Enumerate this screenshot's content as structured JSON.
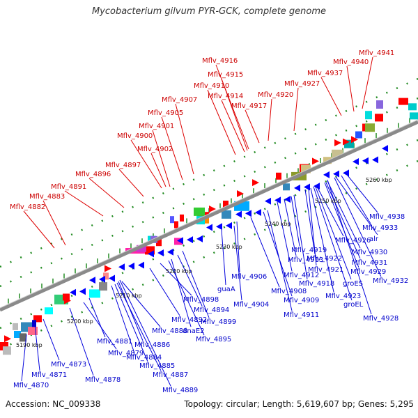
{
  "title": "Mycobacterium gilvum PYR-GCK, complete genome",
  "footer": {
    "accession": "Accession: NC_009338",
    "topology": "Topology: circular; Length: 5,619,607 bp; Genes: 5,295"
  },
  "colors": {
    "top_labels": "#cc0000",
    "bottom_labels": "#0000cc",
    "forward_genes": "#ff0000",
    "reverse_genes": "#0000ff",
    "backbone": "#888888",
    "ticks": "#228B22"
  },
  "kbp_ticks": [
    "5190 kbp",
    "5200 kbp",
    "5210 kbp",
    "5220 kbp",
    "5230 kbp",
    "5240 kbp",
    "5250 kbp",
    "5260 kbp"
  ],
  "top_labels": [
    "Mflv_4941",
    "Mflv_4940",
    "Mflv_4937",
    "Mflv_4927",
    "Mflv_4920",
    "Mflv_4917",
    "Mflv_4916",
    "Mflv_4915",
    "Mflv_4914",
    "Mflv_4910",
    "Mflv_4907",
    "Mflv_4905",
    "Mflv_4901",
    "Mflv_4900",
    "Mflv_4902",
    "Mflv_4897",
    "Mflv_4896",
    "Mflv_4891",
    "Mflv_4883",
    "Mflv_4882"
  ],
  "bottom_labels": [
    "Mflv_4938",
    "Mflv_4933",
    "alr",
    "Mflv_4926",
    "Mflv_4930",
    "Mflv_4919",
    "Mflv_4931",
    "Mflv_4922",
    "Mflv_4929",
    "Mflv_4913",
    "Mflv_4921",
    "Mflv_4932",
    "Mflv_4912",
    "Mflv_4918",
    "groES",
    "Mflv_4906",
    "Mflv_4908",
    "Mflv_4923",
    "Mflv_4909",
    "groEL",
    "Mflv_4904",
    "guaA",
    "Mflv_4911",
    "Mflv_4928",
    "Mflv_4898",
    "Mflv_4894",
    "Mflv_4892",
    "Mflv_4899",
    "dnaE2",
    "Mflv_4888",
    "Mflv_4895",
    "Mflv_4881",
    "Mflv_4886",
    "Mflv_4879",
    "Mflv_4884",
    "Mflv_4885",
    "Mflv_4873",
    "Mflv_4887",
    "Mflv_4871",
    "Mflv_4878",
    "Mflv_4870",
    "Mflv_4889"
  ]
}
